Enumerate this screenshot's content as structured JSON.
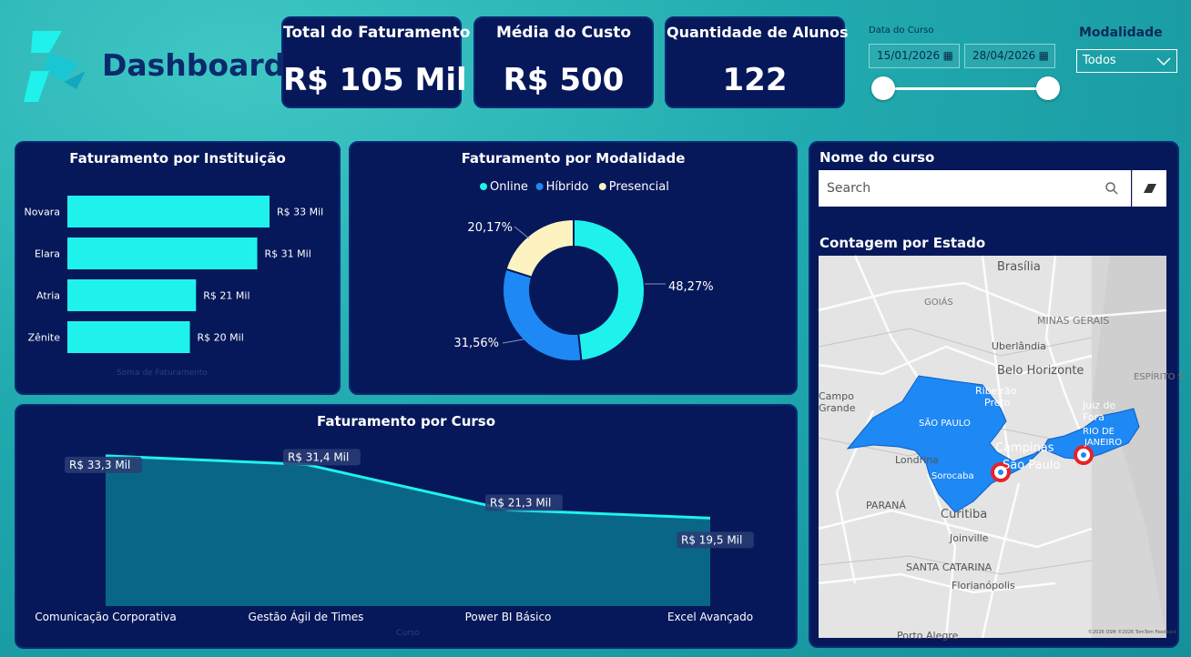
{
  "header": {
    "title": "Dashboard"
  },
  "colors": {
    "accent": "#1ff2ec",
    "navy": "#06185a",
    "blue": "#1e88f5",
    "cream": "#fdf3c0"
  },
  "kpis": [
    {
      "title": "Total do Faturamento",
      "value": "R$ 105 Mil"
    },
    {
      "title": "Média do Custo",
      "value": "R$ 500"
    },
    {
      "title": "Quantidade de Alunos",
      "value": "122"
    }
  ],
  "filters": {
    "date_label": "Data do Curso",
    "date_start": "15/01/2026",
    "date_end": "28/04/2026",
    "modalidade_label": "Modalidade",
    "modalidade_value": "Todos"
  },
  "panels": {
    "instituicao_title": "Faturamento por Instituição",
    "modalidade_title": "Faturamento por Modalidade",
    "curso_title": "Faturamento por Curso",
    "nome_curso_title": "Nome do curso",
    "estado_title": "Contagem por Estado"
  },
  "search": {
    "placeholder": "Search"
  },
  "icons": {
    "search": "search-icon",
    "eraser": "eraser-icon",
    "calendar": "calendar-icon",
    "chevron": "chevron-down-icon"
  },
  "map": {
    "labels": [
      "Brasília",
      "GOIÁS",
      "MINAS GERAIS",
      "Uberlândia",
      "Belo Horizonte",
      "Ribeirão Preto",
      "ESPÍRITO S",
      "Campo Grande",
      "SÃO PAULO",
      "Juiz de Fora",
      "RIO DE JANEIRO",
      "Londrina",
      "Campinas",
      "São Paulo",
      "Sorocaba",
      "PARANÁ",
      "Curitiba",
      "Joinville",
      "SANTA CATARINA",
      "Florianópolis",
      "Porto Alegre"
    ],
    "attribution": "©2026 OSM ©2026 TomTom Feedback"
  },
  "chart_data": [
    {
      "type": "bar",
      "title": "Faturamento por Instituição",
      "categories": [
        "Novara",
        "Elara",
        "Atria",
        "Zênite"
      ],
      "values": [
        33,
        31,
        21,
        20
      ],
      "data_labels": [
        "R$ 33 Mil",
        "R$ 31 Mil",
        "R$ 21 Mil",
        "R$ 20 Mil"
      ],
      "xlabel": "Soma de Faturamento",
      "orientation": "horizontal"
    },
    {
      "type": "pie",
      "title": "Faturamento por Modalidade",
      "categories": [
        "Online",
        "Híbrido",
        "Presencial"
      ],
      "values": [
        48.27,
        31.56,
        20.17
      ],
      "data_labels": [
        "48,27%",
        "31,56%",
        "20,17%"
      ],
      "colors": [
        "#1ff2ec",
        "#1e88f5",
        "#fdf3c0"
      ],
      "legend": "top"
    },
    {
      "type": "area",
      "title": "Faturamento por Curso",
      "categories": [
        "Comunicação Corporativa",
        "Gestão Ágil de Times",
        "Power BI Básico",
        "Excel Avançado"
      ],
      "values": [
        33.3,
        31.4,
        21.3,
        19.5
      ],
      "data_labels": [
        "R$ 33,3 Mil",
        "R$ 31,4 Mil",
        "R$ 21,3 Mil",
        "R$ 19,5 Mil"
      ],
      "xlabel": "Curso"
    }
  ]
}
